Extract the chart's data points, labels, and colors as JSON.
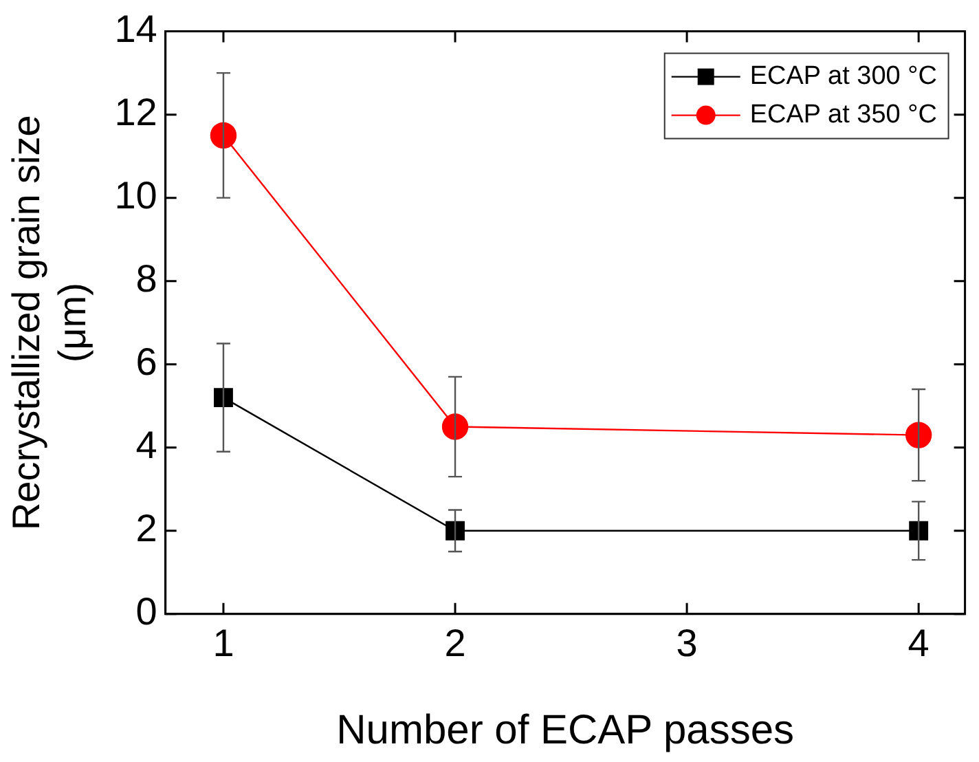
{
  "chart_data": {
    "type": "line",
    "xlabel": "Number of ECAP passes",
    "ylabel": "Recrystallized grain size (μm)",
    "x": [
      1,
      2,
      4
    ],
    "series": [
      {
        "name": "ECAP at 300 °C",
        "color": "#000000",
        "marker": "square",
        "values": [
          5.2,
          2.0,
          2.0
        ],
        "errors": [
          1.3,
          0.5,
          0.7
        ]
      },
      {
        "name": "ECAP at 350 °C",
        "color": "#ff0000",
        "marker": "circle",
        "values": [
          11.5,
          4.5,
          4.3
        ],
        "errors": [
          1.5,
          1.2,
          1.1
        ]
      }
    ],
    "xlim": [
      0.75,
      4.2
    ],
    "xticks": [
      1,
      2,
      3,
      4
    ],
    "ylim": [
      0,
      14
    ],
    "yticks": [
      0,
      2,
      4,
      6,
      8,
      10,
      12,
      14
    ],
    "grid": false,
    "legend": "top right"
  }
}
